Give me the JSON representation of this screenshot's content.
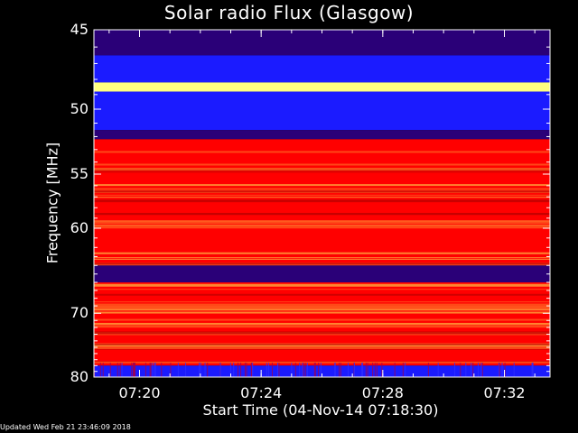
{
  "chart_data": {
    "type": "heatmap",
    "title": "Solar radio Flux (Glasgow)",
    "xlabel": "Start Time (04-Nov-14 07:18:30)",
    "ylabel": "Frequency [MHz]",
    "updated": "Updated Wed Feb 21 23:46:09 2018",
    "start_time": "07:18:30",
    "end_time": "07:33:30",
    "x_ticks": [
      {
        "time": "07:20"
      },
      {
        "time": "07:24"
      },
      {
        "time": "07:28"
      },
      {
        "time": "07:32"
      }
    ],
    "y_ticks": [
      45,
      50,
      55,
      60,
      70,
      80
    ],
    "ylim": [
      45,
      80
    ],
    "y_scale": "reciprocal",
    "colormap": {
      "low": "#2a0078",
      "mid_low": "#1b1bff",
      "mid": "#ff0000",
      "high": "#ffff80"
    },
    "bands": [
      {
        "freq": [
          45.0,
          46.5
        ],
        "level": "low"
      },
      {
        "freq": [
          46.5,
          48.2
        ],
        "level": "mid_low"
      },
      {
        "freq": [
          48.2,
          48.8
        ],
        "level": "high"
      },
      {
        "freq": [
          48.8,
          51.5
        ],
        "level": "mid_low"
      },
      {
        "freq": [
          51.5,
          52.2
        ],
        "level": "low"
      },
      {
        "freq": [
          52.2,
          64.0
        ],
        "level": "mid"
      },
      {
        "freq": [
          64.0,
          66.0
        ],
        "level": "low"
      },
      {
        "freq": [
          66.0,
          78.0
        ],
        "level": "mid"
      },
      {
        "freq": [
          78.0,
          80.0
        ],
        "level": "mid_low"
      }
    ]
  }
}
